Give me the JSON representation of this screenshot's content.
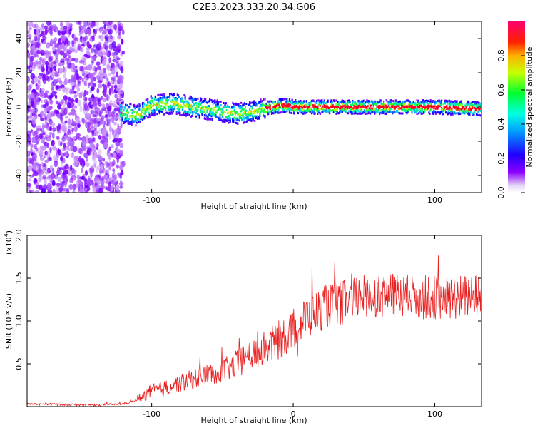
{
  "title": "C2E3.2023.333.20.34.G06",
  "chart_data": [
    {
      "type": "heatmap",
      "name": "spectrogram",
      "xlabel": "Height of straight line (km)",
      "ylabel": "Frequency (Hz)",
      "xlim": [
        -188,
        133
      ],
      "ylim": [
        -50,
        50
      ],
      "xticks": [
        -100,
        0,
        100
      ],
      "xtick_labels": [
        "-100",
        "",
        "100"
      ],
      "yticks": [
        -40,
        -20,
        0,
        20,
        40
      ],
      "ytick_labels": [
        "-40",
        "-20",
        "0",
        "20",
        "40"
      ],
      "colorbar": {
        "label": "Normalized spectral amplitude",
        "range": [
          0,
          1
        ],
        "ticks": [
          0.0,
          0.2,
          0.4,
          0.6,
          0.8
        ],
        "tick_labels": [
          "0.0",
          "0.2",
          "0.4",
          "0.6",
          "0.8"
        ],
        "colors": [
          "#f0e6f7",
          "#7f00ff",
          "#0000ff",
          "#00d8ff",
          "#00ff40",
          "#d0ff00",
          "#ffb000",
          "#ff0000",
          "#ff0080"
        ]
      },
      "features": [
        {
          "name": "noise-region",
          "x_range": [
            -188,
            -120
          ],
          "freq_range": [
            -50,
            50
          ],
          "amplitude": 0.1
        },
        {
          "name": "signal-band",
          "x_range": [
            -122,
            133
          ],
          "center_freq_hz": 0,
          "amplitude_max": 0.95
        }
      ],
      "signal_band_center": [
        {
          "x": -122,
          "f": -3
        },
        {
          "x": -110,
          "f": -5
        },
        {
          "x": -100,
          "f": 1
        },
        {
          "x": -85,
          "f": 2
        },
        {
          "x": -70,
          "f": 0
        },
        {
          "x": -55,
          "f": -2
        },
        {
          "x": -40,
          "f": -4
        },
        {
          "x": -25,
          "f": -2
        },
        {
          "x": -15,
          "f": 0
        },
        {
          "x": -7,
          "f": 1
        },
        {
          "x": 0,
          "f": 0
        },
        {
          "x": 50,
          "f": 0
        },
        {
          "x": 100,
          "f": 0
        },
        {
          "x": 133,
          "f": -1
        }
      ]
    },
    {
      "type": "line",
      "name": "snr",
      "xlabel": "Height of straight line (km)",
      "ylabel": "SNR (10 * v/v)",
      "y_multiplier_label": "(x10",
      "y_multiplier_exp": "4",
      "y_multiplier_close": ")",
      "xlim": [
        -188,
        133
      ],
      "ylim": [
        0,
        2.0
      ],
      "xticks": [
        -100,
        0,
        100
      ],
      "xtick_labels": [
        "-100",
        "0",
        "100"
      ],
      "yticks": [
        0.5,
        1.0,
        1.5,
        2.0
      ],
      "ytick_labels": [
        "0.5",
        "1.0",
        "1.5",
        "2.0"
      ],
      "color": "#e82020",
      "envelope": [
        {
          "x": -188,
          "y": 0.03
        },
        {
          "x": -140,
          "y": 0.02
        },
        {
          "x": -120,
          "y": 0.03
        },
        {
          "x": -110,
          "y": 0.08
        },
        {
          "x": -100,
          "y": 0.18
        },
        {
          "x": -90,
          "y": 0.22
        },
        {
          "x": -75,
          "y": 0.3
        },
        {
          "x": -60,
          "y": 0.38
        },
        {
          "x": -45,
          "y": 0.45
        },
        {
          "x": -30,
          "y": 0.6
        },
        {
          "x": -20,
          "y": 0.68
        },
        {
          "x": -10,
          "y": 0.78
        },
        {
          "x": 0,
          "y": 0.9
        },
        {
          "x": 10,
          "y": 1.05
        },
        {
          "x": 20,
          "y": 1.15
        },
        {
          "x": 35,
          "y": 1.22
        },
        {
          "x": 50,
          "y": 1.3
        },
        {
          "x": 70,
          "y": 1.3
        },
        {
          "x": 90,
          "y": 1.28
        },
        {
          "x": 110,
          "y": 1.27
        },
        {
          "x": 133,
          "y": 1.3
        }
      ],
      "noise_amplitude": 0.22
    }
  ]
}
